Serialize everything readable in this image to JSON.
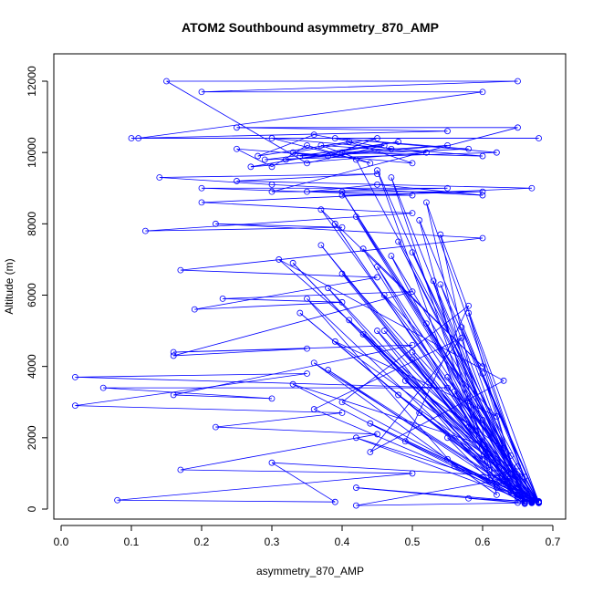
{
  "chart_data": {
    "type": "line",
    "title": "ATOM2 Southbound asymmetry_870_AMP",
    "xlabel": "asymmetry_870_AMP",
    "ylabel": "Altitude (m)",
    "xlim": [
      0.0,
      0.7
    ],
    "ylim": [
      0,
      12000
    ],
    "x_ticks": [
      "0.0",
      "0.1",
      "0.2",
      "0.3",
      "0.4",
      "0.5",
      "0.6",
      "0.7"
    ],
    "y_ticks": [
      "0",
      "2000",
      "4000",
      "6000",
      "8000",
      "10000",
      "12000"
    ],
    "grid": false,
    "series": [
      {
        "color": "#0000ff",
        "marker": "open-circle",
        "points": [
          [
            0.67,
            200
          ],
          [
            0.65,
            350
          ],
          [
            0.68,
            180
          ],
          [
            0.62,
            900
          ],
          [
            0.66,
            150
          ],
          [
            0.55,
            1400
          ],
          [
            0.67,
            250
          ],
          [
            0.6,
            2500
          ],
          [
            0.65,
            180
          ],
          [
            0.58,
            300
          ],
          [
            0.68,
            200
          ],
          [
            0.5,
            4200
          ],
          [
            0.64,
            500
          ],
          [
            0.67,
            170
          ],
          [
            0.45,
            6800
          ],
          [
            0.63,
            800
          ],
          [
            0.68,
            210
          ],
          [
            0.6,
            3800
          ],
          [
            0.66,
            160
          ],
          [
            0.52,
            5200
          ],
          [
            0.67,
            300
          ],
          [
            0.4,
            8900
          ],
          [
            0.65,
            1200
          ],
          [
            0.68,
            190
          ],
          [
            0.55,
            2000
          ],
          [
            0.62,
            600
          ],
          [
            0.67,
            220
          ],
          [
            0.48,
            7500
          ],
          [
            0.66,
            400
          ],
          [
            0.58,
            3100
          ],
          [
            0.68,
            180
          ],
          [
            0.42,
            9800
          ],
          [
            0.35,
            10200
          ],
          [
            0.3,
            9600
          ],
          [
            0.25,
            10100
          ],
          [
            0.38,
            9900
          ],
          [
            0.45,
            10400
          ],
          [
            0.33,
            10000
          ],
          [
            0.5,
            9700
          ],
          [
            0.41,
            10300
          ],
          [
            0.28,
            9900
          ],
          [
            0.36,
            10500
          ],
          [
            0.47,
            10100
          ],
          [
            0.32,
            9800
          ],
          [
            0.55,
            10200
          ],
          [
            0.4,
            10000
          ],
          [
            0.6,
            9900
          ],
          [
            0.3,
            10400
          ],
          [
            0.44,
            9700
          ],
          [
            0.37,
            10200
          ],
          [
            0.52,
            10000
          ],
          [
            0.27,
            9600
          ],
          [
            0.48,
            10300
          ],
          [
            0.34,
            9900
          ],
          [
            0.58,
            10100
          ],
          [
            0.39,
            10400
          ],
          [
            0.62,
            10000
          ],
          [
            0.29,
            9800
          ],
          [
            0.46,
            10200
          ],
          [
            0.35,
            9700
          ],
          [
            0.15,
            12000
          ],
          [
            0.65,
            12000
          ],
          [
            0.2,
            11700
          ],
          [
            0.6,
            11700
          ],
          [
            0.11,
            10400
          ],
          [
            0.68,
            10400
          ],
          [
            0.1,
            10400
          ],
          [
            0.55,
            10600
          ],
          [
            0.25,
            10700
          ],
          [
            0.65,
            10700
          ],
          [
            0.3,
            8900
          ],
          [
            0.6,
            8900
          ],
          [
            0.4,
            8800
          ],
          [
            0.5,
            8800
          ],
          [
            0.2,
            9000
          ],
          [
            0.55,
            9000
          ],
          [
            0.35,
            8900
          ],
          [
            0.45,
            9100
          ],
          [
            0.6,
            8800
          ],
          [
            0.3,
            9100
          ],
          [
            0.14,
            9300
          ],
          [
            0.45,
            9400
          ],
          [
            0.25,
            9200
          ],
          [
            0.67,
            9000
          ],
          [
            0.2,
            8600
          ],
          [
            0.5,
            8300
          ],
          [
            0.12,
            7800
          ],
          [
            0.4,
            7900
          ],
          [
            0.22,
            8000
          ],
          [
            0.6,
            7600
          ],
          [
            0.17,
            6700
          ],
          [
            0.45,
            6500
          ],
          [
            0.19,
            5600
          ],
          [
            0.4,
            5800
          ],
          [
            0.23,
            5900
          ],
          [
            0.5,
            6100
          ],
          [
            0.16,
            4300
          ],
          [
            0.35,
            4500
          ],
          [
            0.16,
            4400
          ],
          [
            0.5,
            4600
          ],
          [
            0.16,
            3200
          ],
          [
            0.3,
            3100
          ],
          [
            0.06,
            3400
          ],
          [
            0.55,
            3400
          ],
          [
            0.02,
            3700
          ],
          [
            0.35,
            3800
          ],
          [
            0.02,
            2900
          ],
          [
            0.4,
            2700
          ],
          [
            0.22,
            2300
          ],
          [
            0.45,
            2100
          ],
          [
            0.17,
            1100
          ],
          [
            0.5,
            1000
          ],
          [
            0.08,
            250
          ],
          [
            0.39,
            200
          ],
          [
            0.3,
            1300
          ],
          [
            0.65,
            900
          ],
          [
            0.42,
            100
          ],
          [
            0.68,
            180
          ],
          [
            0.42,
            600
          ],
          [
            0.66,
            170
          ],
          [
            0.33,
            3500
          ],
          [
            0.6,
            1800
          ],
          [
            0.45,
            5000
          ],
          [
            0.62,
            700
          ],
          [
            0.38,
            6200
          ],
          [
            0.66,
            300
          ],
          [
            0.5,
            7200
          ],
          [
            0.64,
            1500
          ],
          [
            0.42,
            8200
          ],
          [
            0.67,
            200
          ],
          [
            0.36,
            2800
          ],
          [
            0.57,
            4800
          ],
          [
            0.44,
            1600
          ],
          [
            0.63,
            3600
          ],
          [
            0.31,
            7000
          ],
          [
            0.59,
            2200
          ],
          [
            0.47,
            9300
          ],
          [
            0.65,
            400
          ],
          [
            0.34,
            5500
          ],
          [
            0.61,
            1100
          ],
          [
            0.53,
            6400
          ],
          [
            0.66,
            250
          ],
          [
            0.4,
            3000
          ],
          [
            0.58,
            5700
          ],
          [
            0.49,
            1900
          ],
          [
            0.67,
            180
          ],
          [
            0.37,
            8400
          ],
          [
            0.6,
            4000
          ],
          [
            0.43,
            7300
          ],
          [
            0.64,
            600
          ],
          [
            0.56,
            3300
          ],
          [
            0.68,
            210
          ],
          [
            0.46,
            6000
          ],
          [
            0.62,
            2600
          ],
          [
            0.39,
            4700
          ],
          [
            0.66,
            900
          ],
          [
            0.51,
            8100
          ],
          [
            0.6,
            1400
          ],
          [
            0.33,
            6900
          ],
          [
            0.65,
            350
          ],
          [
            0.58,
            2300
          ],
          [
            0.45,
            9500
          ],
          [
            0.64,
            1000
          ],
          [
            0.41,
            5300
          ],
          [
            0.68,
            190
          ],
          [
            0.54,
            7700
          ],
          [
            0.62,
            400
          ],
          [
            0.36,
            4100
          ],
          [
            0.67,
            230
          ],
          [
            0.49,
            3600
          ],
          [
            0.63,
            1700
          ],
          [
            0.4,
            6600
          ],
          [
            0.66,
            200
          ],
          [
            0.57,
            5100
          ],
          [
            0.68,
            170
          ],
          [
            0.44,
            2400
          ],
          [
            0.61,
            800
          ],
          [
            0.52,
            8600
          ],
          [
            0.67,
            260
          ],
          [
            0.38,
            3900
          ],
          [
            0.64,
            500
          ],
          [
            0.47,
            7100
          ],
          [
            0.68,
            200
          ],
          [
            0.56,
            1200
          ],
          [
            0.35,
            5900
          ],
          [
            0.65,
            300
          ],
          [
            0.5,
            4400
          ],
          [
            0.67,
            180
          ],
          [
            0.42,
            2000
          ],
          [
            0.63,
            700
          ],
          [
            0.68,
            220
          ],
          [
            0.54,
            6300
          ],
          [
            0.66,
            150
          ],
          [
            0.39,
            8000
          ],
          [
            0.62,
            1300
          ],
          [
            0.48,
            3200
          ],
          [
            0.67,
            240
          ],
          [
            0.58,
            5500
          ],
          [
            0.65,
            600
          ],
          [
            0.43,
            4900
          ],
          [
            0.68,
            190
          ],
          [
            0.51,
            2700
          ],
          [
            0.64,
            900
          ],
          [
            0.37,
            7400
          ],
          [
            0.66,
            210
          ],
          [
            0.55,
            3700
          ],
          [
            0.68,
            170
          ],
          [
            0.46,
            5000
          ],
          [
            0.63,
            1100
          ],
          [
            0.67,
            200
          ]
        ]
      }
    ]
  }
}
